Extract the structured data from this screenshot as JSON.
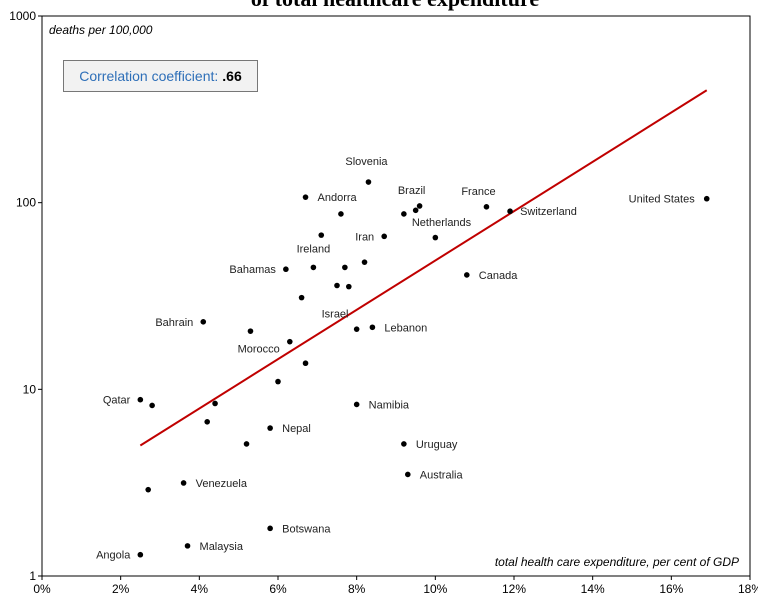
{
  "chart_data": {
    "type": "scatter",
    "title": "of total healthcare expenditure",
    "ylabel": "deaths per 100,000",
    "xlabel": "total health care expenditure, per cent of GDP",
    "xlim": [
      0,
      18
    ],
    "ylim": [
      1,
      1000
    ],
    "y_scale": "log",
    "x_ticks": [
      "0%",
      "2%",
      "4%",
      "6%",
      "8%",
      "10%",
      "12%",
      "14%",
      "16%",
      "18%"
    ],
    "y_ticks": [
      "1",
      "10",
      "100",
      "1000"
    ],
    "correlation_label": "Correlation coefficient:",
    "correlation_value": ".66",
    "trendline": {
      "x": [
        2.5,
        16.9
      ],
      "y": [
        5.0,
        400.0
      ],
      "color": "#c00000"
    },
    "point_color": "#000000",
    "points": [
      {
        "x": 16.9,
        "y": 105,
        "label": "United States"
      },
      {
        "x": 11.9,
        "y": 90,
        "label": "Switzerland"
      },
      {
        "x": 11.3,
        "y": 95,
        "label": "France"
      },
      {
        "x": 9.6,
        "y": 96,
        "label": "Brazil"
      },
      {
        "x": 9.5,
        "y": 91,
        "label": ""
      },
      {
        "x": 9.2,
        "y": 87,
        "label": "Netherlands"
      },
      {
        "x": 10.0,
        "y": 65,
        "label": ""
      },
      {
        "x": 8.7,
        "y": 66,
        "label": "Iran"
      },
      {
        "x": 8.3,
        "y": 129,
        "label": "Slovenia"
      },
      {
        "x": 6.7,
        "y": 107,
        "label": "Andorra"
      },
      {
        "x": 7.6,
        "y": 87,
        "label": ""
      },
      {
        "x": 7.1,
        "y": 67,
        "label": ""
      },
      {
        "x": 8.2,
        "y": 48,
        "label": ""
      },
      {
        "x": 7.7,
        "y": 45,
        "label": ""
      },
      {
        "x": 6.9,
        "y": 45,
        "label": "Ireland"
      },
      {
        "x": 6.2,
        "y": 44,
        "label": "Bahamas"
      },
      {
        "x": 7.5,
        "y": 36,
        "label": ""
      },
      {
        "x": 7.8,
        "y": 35.5,
        "label": ""
      },
      {
        "x": 6.6,
        "y": 31,
        "label": "Israel"
      },
      {
        "x": 10.8,
        "y": 41,
        "label": "Canada"
      },
      {
        "x": 4.1,
        "y": 23,
        "label": "Bahrain"
      },
      {
        "x": 5.3,
        "y": 20.5,
        "label": ""
      },
      {
        "x": 6.3,
        "y": 18,
        "label": "Morocco"
      },
      {
        "x": 8.0,
        "y": 21,
        "label": ""
      },
      {
        "x": 8.4,
        "y": 21.5,
        "label": "Lebanon"
      },
      {
        "x": 6.7,
        "y": 13.8,
        "label": ""
      },
      {
        "x": 6.0,
        "y": 11,
        "label": ""
      },
      {
        "x": 2.5,
        "y": 8.8,
        "label": "Qatar"
      },
      {
        "x": 2.8,
        "y": 8.2,
        "label": ""
      },
      {
        "x": 4.4,
        "y": 8.4,
        "label": ""
      },
      {
        "x": 4.2,
        "y": 6.7,
        "label": ""
      },
      {
        "x": 5.8,
        "y": 6.2,
        "label": "Nepal"
      },
      {
        "x": 8.0,
        "y": 8.3,
        "label": "Namibia"
      },
      {
        "x": 5.2,
        "y": 5.1,
        "label": ""
      },
      {
        "x": 9.2,
        "y": 5.1,
        "label": "Uruguay"
      },
      {
        "x": 9.3,
        "y": 3.5,
        "label": "Australia"
      },
      {
        "x": 3.6,
        "y": 3.15,
        "label": "Venezuela"
      },
      {
        "x": 2.7,
        "y": 2.9,
        "label": ""
      },
      {
        "x": 5.8,
        "y": 1.8,
        "label": "Botswana"
      },
      {
        "x": 3.7,
        "y": 1.45,
        "label": "Malaysia"
      },
      {
        "x": 2.5,
        "y": 1.3,
        "label": "Angola"
      }
    ]
  }
}
